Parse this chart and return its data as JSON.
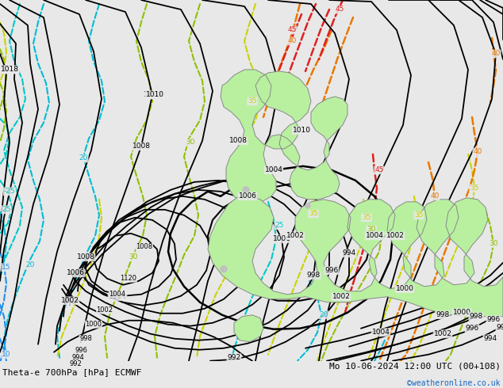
{
  "title_left": "Theta-e 700hPa [hPa] ECMWF",
  "title_right": "Mo 10-06-2024 12:00 UTC (00+108)",
  "copyright": "©weatheronline.co.uk",
  "bg_color": "#e8e8e8",
  "fig_width": 6.34,
  "fig_height": 4.9,
  "dpi": 100
}
